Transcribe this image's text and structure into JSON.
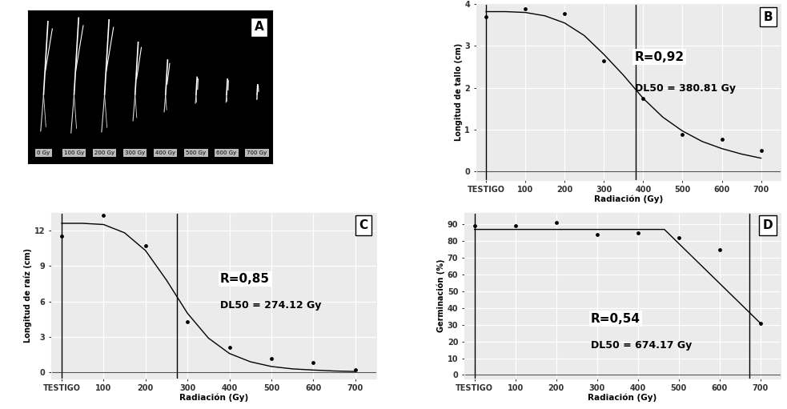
{
  "chart_data": [
    {
      "panel_label": "A",
      "type": "image",
      "labels": [
        "0 Gy",
        "100 Gy",
        "200 Gy",
        "300 Gy",
        "400 Gy",
        "500 Gy",
        "600 Gy",
        "700 Gy"
      ]
    },
    {
      "panel_label": "B",
      "type": "scatter",
      "x": [
        0,
        100,
        200,
        300,
        400,
        500,
        600,
        700
      ],
      "values": [
        3.7,
        3.88,
        3.78,
        2.65,
        1.75,
        0.88,
        0.78,
        0.5
      ],
      "fit": {
        "x": [
          0,
          50,
          100,
          150,
          200,
          250,
          300,
          350,
          400,
          450,
          500,
          550,
          600,
          650,
          700
        ],
        "values": [
          3.82,
          3.82,
          3.8,
          3.72,
          3.55,
          3.25,
          2.8,
          2.3,
          1.75,
          1.3,
          0.97,
          0.72,
          0.55,
          0.42,
          0.32
        ]
      },
      "vlines": [
        0,
        380.81
      ],
      "annotations": [
        "R=0,92",
        "DL50 = 380.81 Gy"
      ],
      "x_label": "Radiación (Gy)",
      "y_label": "Longitud de tallo (cm)",
      "xlim": [
        -25,
        750
      ],
      "xticks": [
        {
          "value": 0,
          "label": "TESTIGO"
        },
        100,
        200,
        300,
        400,
        500,
        600,
        700
      ],
      "ylim": [
        -0.2,
        4
      ],
      "yticks": [
        0,
        1,
        2,
        3,
        4
      ],
      "grid": true,
      "color": "#000000"
    },
    {
      "panel_label": "C",
      "type": "scatter",
      "x": [
        0,
        100,
        200,
        300,
        400,
        500,
        600,
        700
      ],
      "values": [
        11.5,
        13.3,
        10.7,
        4.3,
        2.1,
        1.2,
        0.8,
        0.2
      ],
      "fit": {
        "x": [
          0,
          50,
          100,
          150,
          200,
          250,
          300,
          350,
          400,
          450,
          500,
          550,
          600,
          650,
          700
        ],
        "values": [
          12.6,
          12.6,
          12.5,
          11.8,
          10.3,
          7.8,
          5.0,
          2.9,
          1.6,
          0.9,
          0.5,
          0.3,
          0.2,
          0.12,
          0.08
        ]
      },
      "vlines": [
        0,
        274.12
      ],
      "annotations": [
        "R=0,85",
        "DL50 = 274.12 Gy"
      ],
      "x_label": "Radiación (Gy)",
      "y_label": "Longitud de raíz (cm)",
      "xlim": [
        -25,
        750
      ],
      "xticks": [
        {
          "value": 0,
          "label": "TESTIGO"
        },
        100,
        200,
        300,
        400,
        500,
        600,
        700
      ],
      "ylim": [
        -0.5,
        13.5
      ],
      "yticks": [
        0,
        3,
        6,
        9,
        12
      ],
      "grid": true,
      "color": "#000000"
    },
    {
      "panel_label": "D",
      "type": "scatter",
      "x": [
        0,
        100,
        200,
        300,
        400,
        500,
        600,
        700
      ],
      "values": [
        89,
        89,
        91,
        84,
        85,
        82,
        75,
        31
      ],
      "fit": {
        "x": [
          0,
          465,
          700
        ],
        "values": [
          87,
          87,
          31
        ]
      },
      "vlines": [
        0,
        674.17
      ],
      "annotations": [
        "R=0,54",
        "DL50 = 674.17 Gy"
      ],
      "x_label": "Radiación (Gy)",
      "y_label": "Germinación (%)",
      "xlim": [
        -25,
        750
      ],
      "xticks": [
        {
          "value": 0,
          "label": "TESTIGO"
        },
        100,
        200,
        300,
        400,
        500,
        600,
        700
      ],
      "ylim": [
        -2,
        97
      ],
      "yticks": [
        0,
        10,
        20,
        30,
        40,
        50,
        60,
        70,
        80,
        90
      ],
      "grid": true,
      "color": "#000000"
    }
  ]
}
